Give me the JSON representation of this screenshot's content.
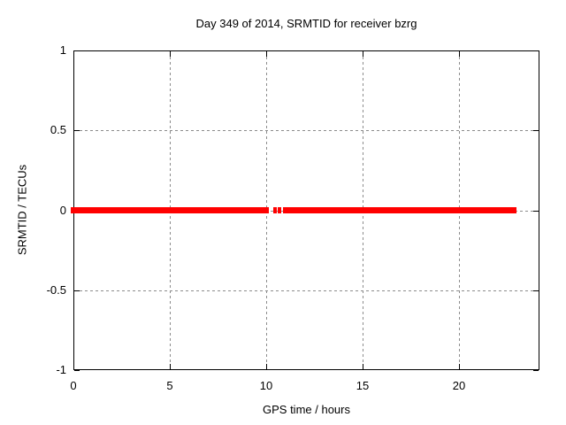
{
  "chart_data": {
    "type": "line",
    "title": "Day 349 of 2014, SRMTID for receiver bzrg",
    "xlabel": "GPS time / hours",
    "ylabel": "SRMTID / TECUs",
    "xlim": [
      0,
      24.2
    ],
    "ylim": [
      -1,
      1
    ],
    "grid": true,
    "legend": "none",
    "xticks": [
      {
        "v": 0,
        "label": "0"
      },
      {
        "v": 5,
        "label": "5"
      },
      {
        "v": 10,
        "label": "10"
      },
      {
        "v": 15,
        "label": "15"
      },
      {
        "v": 20,
        "label": "20"
      }
    ],
    "yticks": [
      {
        "v": -1,
        "label": "-1"
      },
      {
        "v": -0.5,
        "label": "-0.5"
      },
      {
        "v": 0,
        "label": "0"
      },
      {
        "v": 0.5,
        "label": "0.5"
      },
      {
        "v": 1,
        "label": "1"
      }
    ],
    "series": [
      {
        "name": "SRMTID",
        "color": "#ff0000",
        "y_value": 0,
        "segments_hours": [
          [
            -0.15,
            10.16
          ],
          [
            10.9,
            23.0
          ]
        ],
        "isolated_points_hours": [
          10.48,
          10.71
        ]
      }
    ],
    "colors": {
      "grid": "#8c8c8c",
      "border": "#000000",
      "background": "#ffffff",
      "series": "#ff0000"
    }
  }
}
